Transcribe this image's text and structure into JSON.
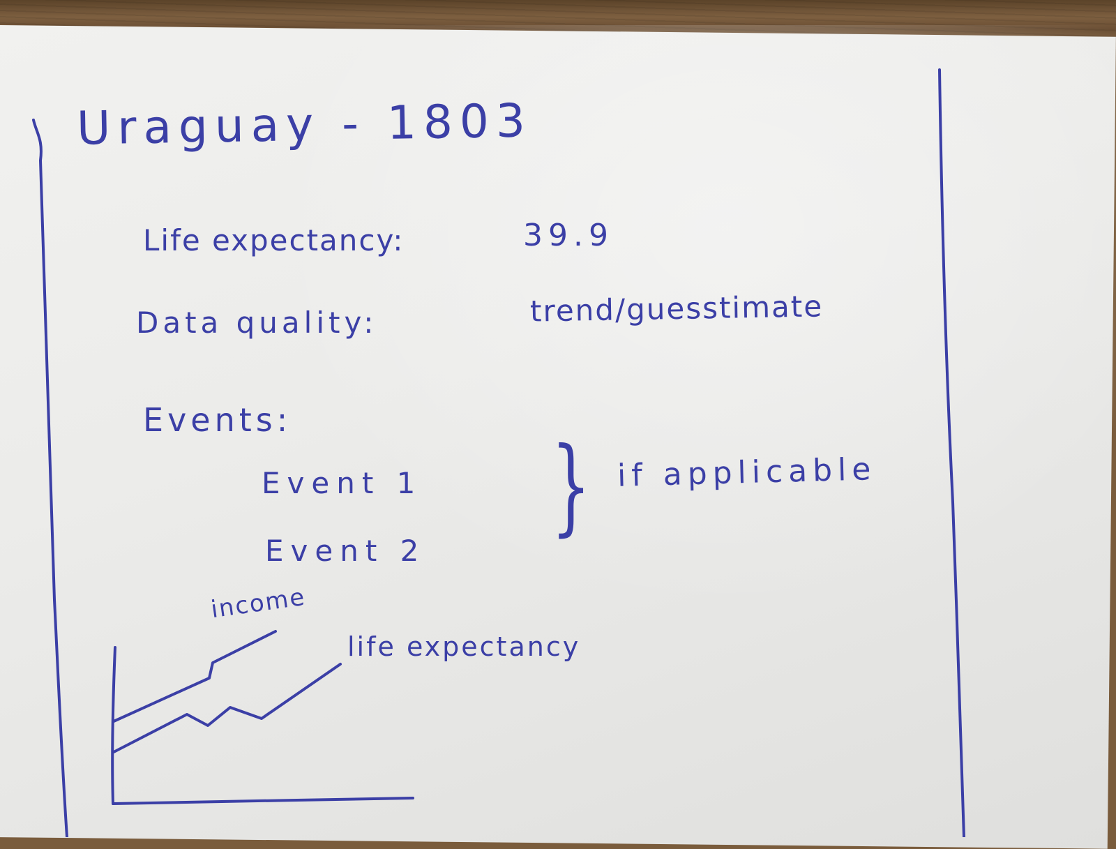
{
  "card": {
    "title": "Uraguay - 1803",
    "life_expectancy_label": "Life expectancy:",
    "life_expectancy_value": "39.9",
    "data_quality_label": "Data quality:",
    "data_quality_value": "trend/guesstimate",
    "events_heading": "Events:",
    "events": [
      "Event 1",
      "Event 2"
    ],
    "brace_glyph": "}",
    "events_note": "if applicable"
  },
  "sketch": {
    "series": [
      {
        "name": "income",
        "trend": "rising"
      },
      {
        "name": "life expectancy",
        "trend": "rising"
      }
    ]
  },
  "colors": {
    "ink": "#3b3fa6",
    "paper": "#ececea",
    "wood": "#7a5c3c"
  }
}
